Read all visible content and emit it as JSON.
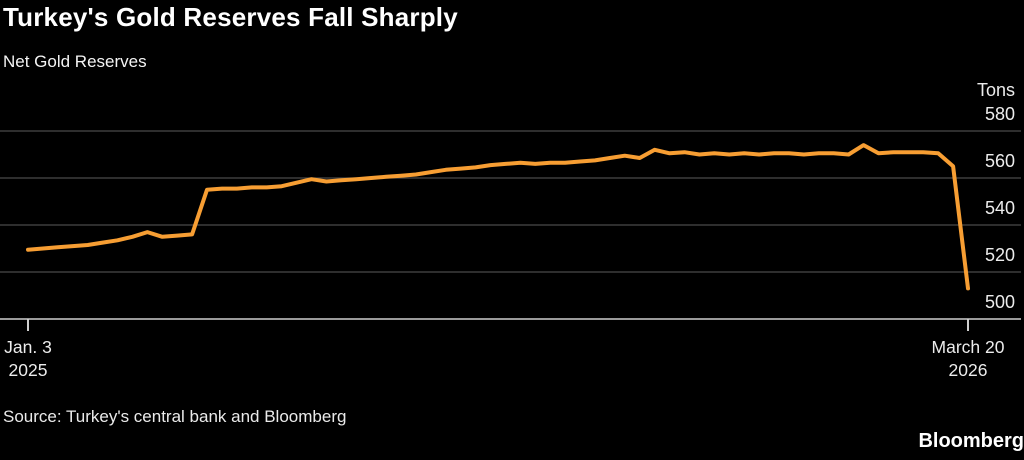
{
  "header": {
    "title": "Turkey's Gold Reserves Fall Sharply",
    "subtitle": "Net Gold Reserves"
  },
  "chart_data": {
    "type": "line",
    "title": "Turkey's Gold Reserves Fall Sharply",
    "subtitle": "Net Gold Reserves",
    "unit_label": "Tons",
    "ylabel": "Tons",
    "xlabel": "",
    "ylim": [
      497,
      584
    ],
    "grid": "horizontal",
    "legend_position": "none",
    "y_ticks": [
      580,
      560,
      540,
      520,
      500
    ],
    "x_ticks": [
      {
        "line1": "Jan. 3",
        "line2": "2025"
      },
      {
        "line1": "March 20",
        "line2": "2026"
      }
    ],
    "colors": {
      "line": "#F79E33",
      "gridline": "#4a4a4a",
      "axis": "#9b9b9b",
      "tick": "#cfcfcf",
      "background": "#000000"
    },
    "series": [
      {
        "name": "Net Gold Reserves",
        "color": "#F79E33",
        "x": [
          "2025-01-03",
          "2025-01-10",
          "2025-01-17",
          "2025-01-24",
          "2025-01-31",
          "2025-02-07",
          "2025-02-14",
          "2025-02-21",
          "2025-02-28",
          "2025-03-07",
          "2025-03-14",
          "2025-03-21",
          "2025-03-28",
          "2025-04-04",
          "2025-04-11",
          "2025-04-18",
          "2025-04-25",
          "2025-05-02",
          "2025-05-09",
          "2025-05-16",
          "2025-05-23",
          "2025-05-30",
          "2025-06-06",
          "2025-06-13",
          "2025-06-20",
          "2025-06-27",
          "2025-07-04",
          "2025-07-11",
          "2025-07-18",
          "2025-07-25",
          "2025-08-01",
          "2025-08-08",
          "2025-08-15",
          "2025-08-22",
          "2025-08-29",
          "2025-09-05",
          "2025-09-12",
          "2025-09-19",
          "2025-09-26",
          "2025-10-03",
          "2025-10-10",
          "2025-10-17",
          "2025-10-24",
          "2025-10-31",
          "2025-11-07",
          "2025-11-14",
          "2025-11-21",
          "2025-11-28",
          "2025-12-05",
          "2025-12-12",
          "2025-12-19",
          "2025-12-26",
          "2026-01-02",
          "2026-01-09",
          "2026-01-16",
          "2026-01-23",
          "2026-01-30",
          "2026-02-06",
          "2026-02-13",
          "2026-02-20",
          "2026-02-27",
          "2026-03-06",
          "2026-03-13",
          "2026-03-20"
        ],
        "values": [
          529.5,
          530,
          530.5,
          531,
          531.5,
          532.5,
          533.5,
          535,
          537,
          535,
          535.5,
          536,
          555,
          555.5,
          555.5,
          556,
          556,
          556.5,
          558,
          559.5,
          558.5,
          559,
          559.5,
          560,
          560.5,
          561,
          561.5,
          562.5,
          563.5,
          564,
          564.5,
          565.5,
          566,
          566.5,
          566,
          566.5,
          566.5,
          567,
          567.5,
          568.5,
          569.5,
          568.5,
          572,
          570.5,
          571,
          570,
          570.5,
          570,
          570.5,
          570,
          570.5,
          570.5,
          570,
          570.5,
          570.5,
          570,
          574,
          570.5,
          571,
          571,
          571,
          570.5,
          565,
          513
        ]
      }
    ]
  },
  "footer": {
    "source": "Source: Turkey's central bank and Bloomberg",
    "brand": "Bloomberg"
  }
}
